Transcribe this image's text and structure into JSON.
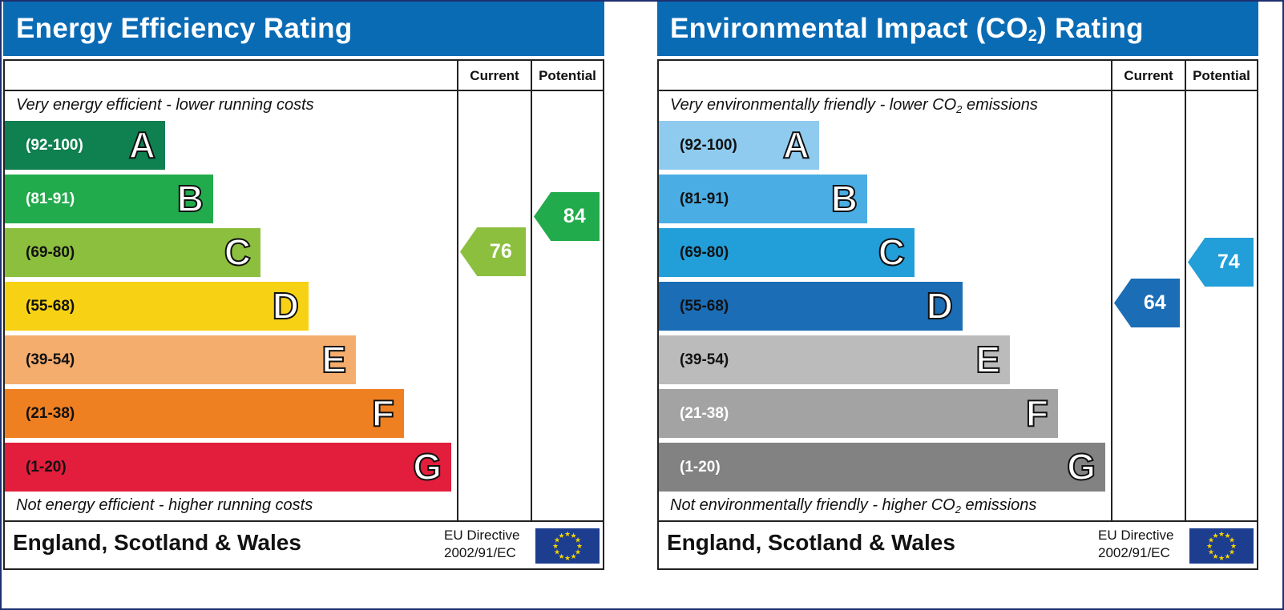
{
  "chart_data": [
    {
      "type": "bar",
      "title": "Energy Efficiency Rating",
      "columns": [
        "Current",
        "Potential"
      ],
      "top_caption": "Very energy efficient - lower running costs",
      "bottom_caption": "Not energy efficient - higher running costs",
      "bands": [
        {
          "letter": "A",
          "range": "(92-100)",
          "color": "#0f8050",
          "text_color": "#ffffff"
        },
        {
          "letter": "B",
          "range": "(81-91)",
          "color": "#22ab4c",
          "text_color": "#ffffff"
        },
        {
          "letter": "C",
          "range": "(69-80)",
          "color": "#8dbf3f",
          "text_color": "#111111"
        },
        {
          "letter": "D",
          "range": "(55-68)",
          "color": "#f7d114",
          "text_color": "#111111"
        },
        {
          "letter": "E",
          "range": "(39-54)",
          "color": "#f4ad6d",
          "text_color": "#111111"
        },
        {
          "letter": "F",
          "range": "(21-38)",
          "color": "#ef8022",
          "text_color": "#111111"
        },
        {
          "letter": "G",
          "range": "(1-20)",
          "color": "#e31d3c",
          "text_color": "#111111"
        }
      ],
      "current": {
        "value": 76,
        "label": "76",
        "band": "C",
        "color": "#8dbf3f"
      },
      "potential": {
        "value": 84,
        "label": "84",
        "band": "B",
        "color": "#22ab4c"
      }
    },
    {
      "type": "bar",
      "title_main": "Environmental Impact (CO",
      "title_sub": "2",
      "title_tail": ") Rating",
      "columns": [
        "Current",
        "Potential"
      ],
      "top_caption_main": "Very environmentally friendly - lower CO",
      "top_caption_sub": "2",
      "top_caption_tail": " emissions",
      "bottom_caption_main": "Not environmentally friendly - higher CO",
      "bottom_caption_sub": "2",
      "bottom_caption_tail": " emissions",
      "bands": [
        {
          "letter": "A",
          "range": "(92-100)",
          "color": "#8fcbee",
          "text_color": "#111111"
        },
        {
          "letter": "B",
          "range": "(81-91)",
          "color": "#4aade4",
          "text_color": "#111111"
        },
        {
          "letter": "C",
          "range": "(69-80)",
          "color": "#229ed9",
          "text_color": "#111111"
        },
        {
          "letter": "D",
          "range": "(55-68)",
          "color": "#1b6db6",
          "text_color": "#111111"
        },
        {
          "letter": "E",
          "range": "(39-54)",
          "color": "#bcbbbb",
          "text_color": "#111111"
        },
        {
          "letter": "F",
          "range": "(21-38)",
          "color": "#a3a3a3",
          "text_color": "#ffffff"
        },
        {
          "letter": "G",
          "range": "(1-20)",
          "color": "#828282",
          "text_color": "#ffffff"
        }
      ],
      "current": {
        "value": 64,
        "label": "64",
        "band": "D",
        "color": "#1b6db6"
      },
      "potential": {
        "value": 74,
        "label": "74",
        "band": "C",
        "color": "#229ed9"
      }
    }
  ],
  "footer": {
    "country": "England, Scotland & Wales",
    "directive_line1": "EU Directive",
    "directive_line2": "2002/91/EC"
  },
  "colors": {
    "title_bar": "#0a6bb5",
    "flag_blue": "#1d3d8f",
    "flag_star": "#f5d400"
  }
}
